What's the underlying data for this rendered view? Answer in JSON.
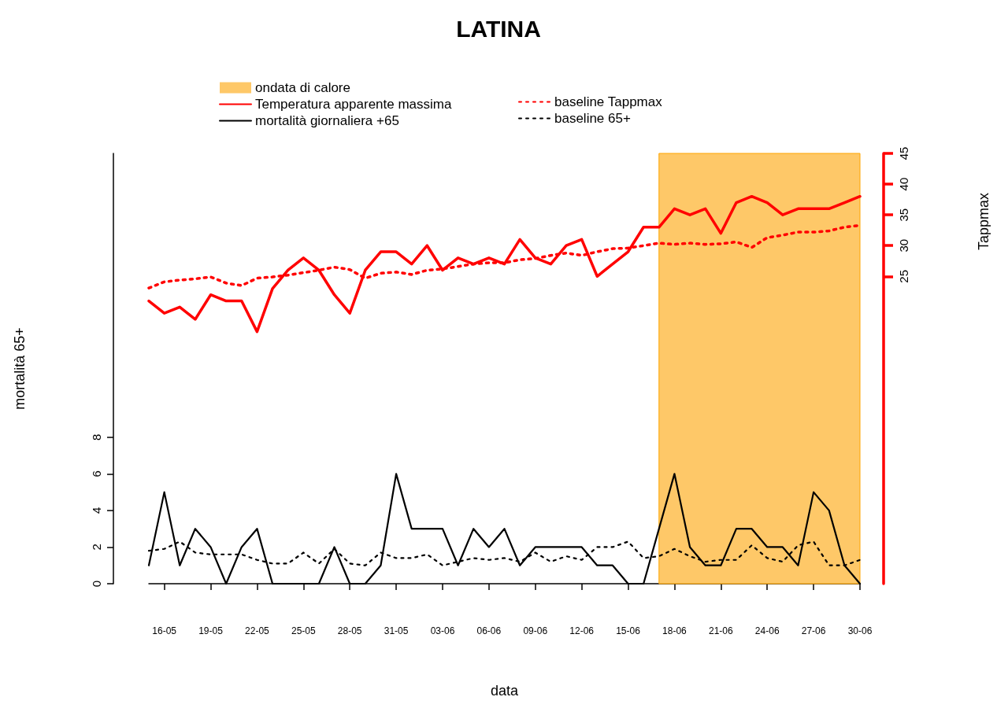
{
  "chart_data": {
    "type": "line",
    "title": "LATINA",
    "xlabel": "data",
    "ylabel": "mortalità 65+",
    "y2label": "Tappmax",
    "x": [
      "--05-15",
      "--05-16",
      "--05-17",
      "--05-18",
      "--05-19",
      "--05-20",
      "--05-21",
      "--05-22",
      "--05-23",
      "--05-24",
      "--05-25",
      "--05-26",
      "--05-27",
      "--05-28",
      "--05-29",
      "--05-30",
      "--05-31",
      "--06-01",
      "--06-02",
      "--06-03",
      "--06-04",
      "--06-05",
      "--06-06",
      "--06-07",
      "--06-08",
      "--06-09",
      "--06-10",
      "--06-11",
      "--06-12",
      "--06-13",
      "--06-14",
      "--06-15",
      "--06-16",
      "--06-17",
      "--06-18",
      "--06-19",
      "--06-20",
      "--06-21",
      "--06-22",
      "--06-23",
      "--06-24",
      "--06-25",
      "--06-26",
      "--06-27",
      "--06-28",
      "--06-29",
      "--06-30"
    ],
    "xlim": [
      "--05-15",
      "--06-30"
    ],
    "xticks": [
      {
        "value": "--05-16",
        "label": "16-05"
      },
      {
        "value": "--05-19",
        "label": "19-05"
      },
      {
        "value": "--05-22",
        "label": "22-05"
      },
      {
        "value": "--05-25",
        "label": "25-05"
      },
      {
        "value": "--05-28",
        "label": "28-05"
      },
      {
        "value": "--05-31",
        "label": "31-05"
      },
      {
        "value": "--06-03",
        "label": "03-06"
      },
      {
        "value": "--06-06",
        "label": "06-06"
      },
      {
        "value": "--06-09",
        "label": "09-06"
      },
      {
        "value": "--06-12",
        "label": "12-06"
      },
      {
        "value": "--06-15",
        "label": "15-06"
      },
      {
        "value": "--06-18",
        "label": "18-06"
      },
      {
        "value": "--06-21",
        "label": "21-06"
      },
      {
        "value": "--06-24",
        "label": "24-06"
      },
      {
        "value": "--06-27",
        "label": "27-06"
      },
      {
        "value": "--06-30",
        "label": "30-06"
      }
    ],
    "ylim": [
      0,
      23.5
    ],
    "yticks": [
      0,
      2,
      4,
      6,
      8
    ],
    "y2lim": [
      -25,
      45
    ],
    "y2ticks": [
      25,
      30,
      35,
      40,
      45
    ],
    "legend": "top",
    "bands": [
      {
        "axis": "x",
        "from": "--06-17",
        "to": "--06-30",
        "label": "ondata di calore",
        "color": "#fec868"
      }
    ],
    "series": [
      {
        "name": "Temperatura apparente massima",
        "color": "#ff0000",
        "axis": "y2",
        "line_style": "solid",
        "values": [
          21,
          19,
          20,
          18,
          22,
          21,
          21,
          16,
          23,
          26,
          28,
          26,
          22,
          19,
          26,
          29,
          29,
          27,
          30,
          26,
          28,
          27,
          28,
          27,
          31,
          28,
          27,
          30,
          31,
          25,
          27,
          29,
          33,
          33,
          36,
          35,
          36,
          32,
          37,
          38,
          37,
          35,
          36,
          36,
          36,
          37,
          38
        ]
      },
      {
        "name": "baseline Tappmax",
        "color": "#ff0000",
        "axis": "y2",
        "line_style": "dotted",
        "values": [
          23.1,
          24.1,
          24.4,
          24.6,
          24.9,
          23.9,
          23.5,
          24.7,
          24.9,
          25.2,
          25.6,
          26.0,
          26.5,
          26.1,
          24.7,
          25.5,
          25.7,
          25.3,
          26.0,
          26.2,
          26.6,
          27.0,
          27.2,
          27.2,
          27.7,
          27.9,
          28.4,
          28.8,
          28.4,
          29.0,
          29.5,
          29.6,
          30.0,
          30.4,
          30.2,
          30.4,
          30.2,
          30.3,
          30.6,
          29.7,
          31.3,
          31.7,
          32.2,
          32.2,
          32.4,
          33.0,
          33.3
        ]
      },
      {
        "name": "mortalità giornaliera +65",
        "color": "#000000",
        "line_style": "solid",
        "values": [
          1,
          5,
          1,
          3,
          2,
          0,
          2,
          3,
          0,
          0,
          0,
          0,
          2,
          0,
          0,
          1,
          6,
          3,
          3,
          3,
          1,
          3,
          2,
          3,
          1,
          2,
          2,
          2,
          2,
          1,
          1,
          0,
          0,
          3,
          6,
          2,
          1,
          1,
          3,
          3,
          2,
          2,
          1,
          5,
          4,
          1,
          0
        ]
      },
      {
        "name": "baseline 65+",
        "color": "#000000",
        "line_style": "dotted",
        "values": [
          1.8,
          1.9,
          2.3,
          1.7,
          1.6,
          1.6,
          1.6,
          1.3,
          1.1,
          1.1,
          1.7,
          1.1,
          1.9,
          1.1,
          1.0,
          1.7,
          1.4,
          1.4,
          1.6,
          1.0,
          1.2,
          1.4,
          1.3,
          1.4,
          1.2,
          1.7,
          1.2,
          1.5,
          1.3,
          2.0,
          2.0,
          2.3,
          1.4,
          1.5,
          1.9,
          1.5,
          1.2,
          1.3,
          1.3,
          2.1,
          1.4,
          1.2,
          2.1,
          2.3,
          1.0,
          1.0,
          1.3
        ]
      }
    ]
  }
}
